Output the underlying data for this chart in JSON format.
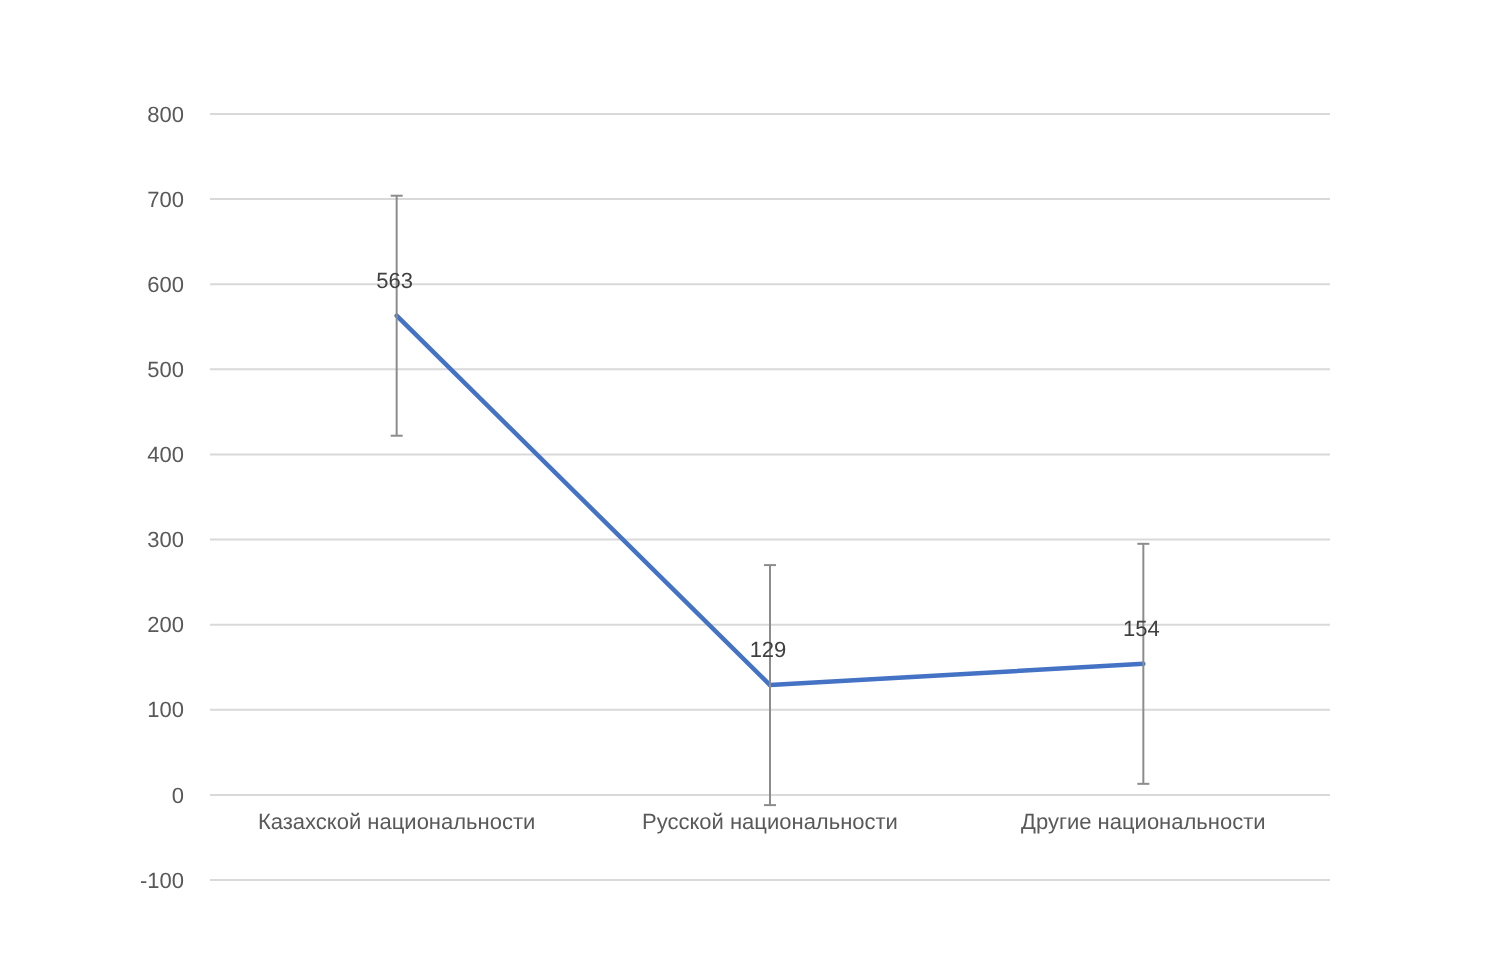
{
  "chart_data": {
    "type": "line",
    "categories": [
      "Казахской национальности",
      "Русской национальности",
      "Другие национальности"
    ],
    "series": [
      {
        "color": "#4472c4",
        "values": [
          563,
          129,
          154
        ],
        "errors": [
          141,
          141,
          141
        ]
      }
    ],
    "ylim": [
      -100,
      800
    ],
    "yticks": [
      -100,
      0,
      100,
      200,
      300,
      400,
      500,
      600,
      700,
      800
    ],
    "grid": "y",
    "data_labels": true,
    "marker": "none",
    "line_style": "solid"
  }
}
